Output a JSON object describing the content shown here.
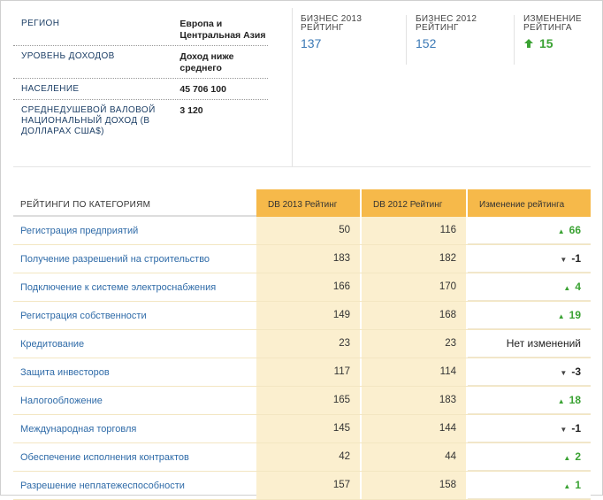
{
  "info": [
    {
      "label": "РЕГИОН",
      "value": "Европа и Центральная Азия"
    },
    {
      "label": "УРОВЕНЬ ДОХОДОВ",
      "value": "Доход ниже среднего"
    },
    {
      "label": "НАСЕЛЕНИЕ",
      "value": "45 706 100"
    },
    {
      "label": "СРЕДНЕДУШЕВОЙ ВАЛОВОЙ НАЦИОНАЛЬНЫЙ ДОХОД (В ДОЛЛАРАХ США$)",
      "value": "3 120"
    }
  ],
  "stats": {
    "db2013": {
      "label": "БИЗНЕС 2013 РЕЙТИНГ",
      "value": "137"
    },
    "db2012": {
      "label": "БИЗНЕС 2012 РЕЙТИНГ",
      "value": "152"
    },
    "change": {
      "label": "ИЗМЕНЕНИЕ РЕЙТИНГА",
      "value": "15",
      "icon": "arrow-up-icon"
    }
  },
  "table": {
    "headers": [
      "РЕЙТИНГИ ПО КАТЕГОРИЯМ",
      "DB 2013 Рейтинг",
      "DB 2012 Рейтинг",
      "Изменение рейтинга"
    ],
    "rows": [
      {
        "name": "Регистрация предприятий",
        "r2013": "50",
        "r2012": "116",
        "change": "66",
        "dir": "up"
      },
      {
        "name": "Получение разрешений на строительство",
        "r2013": "183",
        "r2012": "182",
        "change": "-1",
        "dir": "down"
      },
      {
        "name": "Подключение к системе электроснабжения",
        "r2013": "166",
        "r2012": "170",
        "change": "4",
        "dir": "up"
      },
      {
        "name": "Регистрация собственности",
        "r2013": "149",
        "r2012": "168",
        "change": "19",
        "dir": "up"
      },
      {
        "name": "Кредитование",
        "r2013": "23",
        "r2012": "23",
        "change": "Нет изменений",
        "dir": "none"
      },
      {
        "name": "Защита инвесторов",
        "r2013": "117",
        "r2012": "114",
        "change": "-3",
        "dir": "down"
      },
      {
        "name": "Налогообложение",
        "r2013": "165",
        "r2012": "183",
        "change": "18",
        "dir": "up"
      },
      {
        "name": "Международная торговля",
        "r2013": "145",
        "r2012": "144",
        "change": "-1",
        "dir": "down"
      },
      {
        "name": "Обеспечение исполнения контрактов",
        "r2013": "42",
        "r2012": "44",
        "change": "2",
        "dir": "up"
      },
      {
        "name": "Разрешение неплатежеспособности",
        "r2013": "157",
        "r2012": "158",
        "change": "1",
        "dir": "up"
      }
    ]
  },
  "colors": {
    "accent": "#f6b94a",
    "cell_bg": "#fbefcf",
    "link": "#2f6ba8",
    "up": "#3aa233"
  }
}
